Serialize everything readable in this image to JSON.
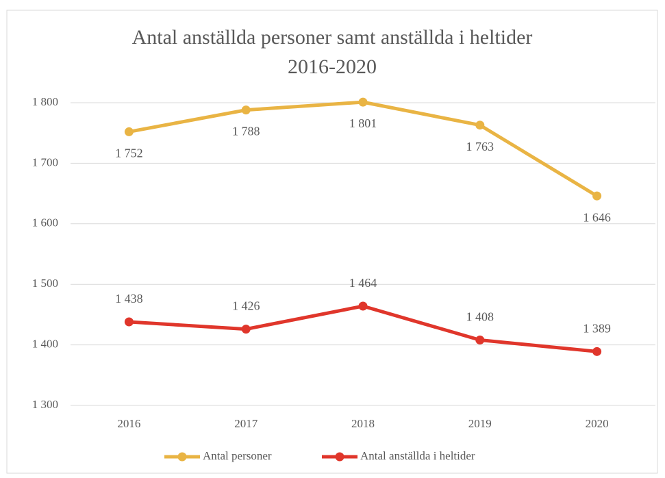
{
  "chart_data": {
    "type": "line",
    "title": "Antal anställda personer samt anställda i heltider",
    "subtitle": "2016-2020",
    "categories": [
      "2016",
      "2017",
      "2018",
      "2019",
      "2020"
    ],
    "series": [
      {
        "name": "Antal personer",
        "color": "#e9b444",
        "values": [
          1752,
          1788,
          1801,
          1763,
          1646
        ],
        "value_labels": [
          "1 752",
          "1 788",
          "1 801",
          "1 763",
          "1 646"
        ]
      },
      {
        "name": "Antal anställda i heltider",
        "color": "#e0362b",
        "values": [
          1438,
          1426,
          1464,
          1408,
          1389
        ],
        "value_labels": [
          "1 438",
          "1 426",
          "1 464",
          "1 408",
          "1 389"
        ]
      }
    ],
    "ylim": [
      1300,
      1800
    ],
    "yticks": [
      {
        "value": 1300,
        "label": "1 300"
      },
      {
        "value": 1400,
        "label": "1 400"
      },
      {
        "value": 1500,
        "label": "1 500"
      },
      {
        "value": 1600,
        "label": "1 600"
      },
      {
        "value": 1700,
        "label": "1 700"
      },
      {
        "value": 1800,
        "label": "1 800"
      }
    ],
    "grid": true,
    "legend": "bottom"
  }
}
